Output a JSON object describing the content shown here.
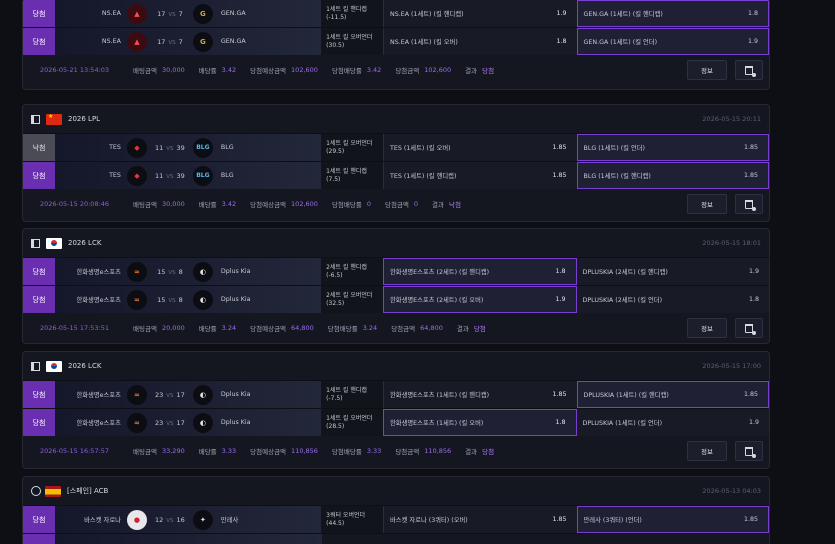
{
  "labels": {
    "bet_amount": "배팅금액",
    "odds": "배당률",
    "expected_win": "당첨예상금액",
    "win_odds": "당첨배당률",
    "win_amount": "당첨금액",
    "result": "결과",
    "info_button": "정보",
    "vs": "VS"
  },
  "colors": {
    "win_status": "#6a2fb0",
    "void_status": "#4a4b55",
    "accent": "#9c6df0",
    "selected_border": "#7a3ed0"
  },
  "cards": [
    {
      "rows": [
        {
          "status": "당첨",
          "team1": "NS.EA",
          "score1": "17",
          "score2": "7",
          "team2": "GEN.GA",
          "market": "1세트 킬 핸디캡 (-11.5)",
          "pick_home": "NS.EA (1세트) (킬 핸디캡)",
          "odd_home": "1.9",
          "pick_away": "GEN.GA (1세트) (킬 핸디캡)",
          "odd_away": "1.8"
        },
        {
          "status": "당첨",
          "team1": "NS.EA",
          "score1": "17",
          "score2": "7",
          "team2": "GEN.GA",
          "market": "1세트 킬 오버언더 (30.5)",
          "pick_home": "NS.EA (1세트) (킬 오버)",
          "odd_home": "1.8",
          "pick_away": "GEN.GA (1세트) (킬 언더)",
          "odd_away": "1.9"
        }
      ],
      "footer": {
        "date": "2026-05-21 13:54:03",
        "bet_amount": "30,000",
        "odds": "3.42",
        "expected_win": "102,600",
        "win_odds": "3.42",
        "win_amount": "102,600",
        "result": "당첨"
      }
    },
    {
      "league": "2026 LPL",
      "date": "2026-05-15 20:11",
      "rows": [
        {
          "status": "낙첨",
          "team1": "TES",
          "score1": "11",
          "score2": "39",
          "team2": "BLG",
          "market": "1세트 킬 오버언더 (29.5)",
          "pick_home": "TES (1세트) (킬 오버)",
          "odd_home": "1.85",
          "pick_away": "BLG (1세트) (킬 언더)",
          "odd_away": "1.85"
        },
        {
          "status": "당첨",
          "team1": "TES",
          "score1": "11",
          "score2": "39",
          "team2": "BLG",
          "market": "1세트 킬 핸디캡 (7.5)",
          "pick_home": "TES (1세트) (킬 핸디캡)",
          "odd_home": "1.85",
          "pick_away": "BLG (1세트) (킬 핸디캡)",
          "odd_away": "1.85"
        }
      ],
      "footer": {
        "date": "2026-05-15 20:08:46",
        "bet_amount": "30,000",
        "odds": "3.42",
        "expected_win": "102,600",
        "win_odds": "0",
        "win_amount": "0",
        "result": "낙첨"
      }
    },
    {
      "league": "2026 LCK",
      "date": "2026-05-15 18:01",
      "rows": [
        {
          "status": "당첨",
          "team1": "한화생명e스포츠",
          "score1": "15",
          "score2": "8",
          "team2": "Dplus Kia",
          "market": "2세트 킬 핸디캡 (-6.5)",
          "pick_home": "한화생명E스포츠 (2세트) (킬 핸디캡)",
          "odd_home": "1.8",
          "pick_away": "DPLUSKIA (2세트) (킬 핸디캡)",
          "odd_away": "1.9"
        },
        {
          "status": "당첨",
          "team1": "한화생명e스포츠",
          "score1": "15",
          "score2": "8",
          "team2": "Dplus Kia",
          "market": "2세트 킬 오버언더 (32.5)",
          "pick_home": "한화생명E스포츠 (2세트) (킬 오버)",
          "odd_home": "1.9",
          "pick_away": "DPLUSKIA (2세트) (킬 언더)",
          "odd_away": "1.8"
        }
      ],
      "footer": {
        "date": "2026-05-15 17:53:51",
        "bet_amount": "20,000",
        "odds": "3.24",
        "expected_win": "64,800",
        "win_odds": "3.24",
        "win_amount": "64,800",
        "result": "당첨"
      }
    },
    {
      "league": "2026 LCK",
      "date": "2026-05-15 17:00",
      "rows": [
        {
          "status": "당첨",
          "team1": "한화생명e스포츠",
          "score1": "23",
          "score2": "17",
          "team2": "Dplus Kia",
          "market": "1세트 킬 핸디캡 (-7.5)",
          "pick_home": "한화생명E스포츠 (1세트) (킬 핸디캡)",
          "odd_home": "1.85",
          "pick_away": "DPLUSKIA (1세트) (킬 핸디캡)",
          "odd_away": "1.85"
        },
        {
          "status": "당첨",
          "team1": "한화생명e스포츠",
          "score1": "23",
          "score2": "17",
          "team2": "Dplus Kia",
          "market": "1세트 킬 오버언더 (28.5)",
          "pick_home": "한화생명E스포츠 (1세트) (킬 오버)",
          "odd_home": "1.8",
          "pick_away": "DPLUSKIA (1세트) (킬 언더)",
          "odd_away": "1.9"
        }
      ],
      "footer": {
        "date": "2026-05-15 16:57:57",
        "bet_amount": "33,290",
        "odds": "3.33",
        "expected_win": "110,856",
        "win_odds": "3.33",
        "win_amount": "110,856",
        "result": "당첨"
      }
    },
    {
      "league": "[스페인] ACB",
      "date": "2026-05-13 04:03",
      "rows": [
        {
          "status": "당첨",
          "team1": "바스켓 자로나",
          "score1": "12",
          "score2": "16",
          "team2": "만레사",
          "market": "3쿼터 오버언더 (44.5)",
          "pick_home": "바스켓 자로나 (3쿼터) (오버)",
          "odd_home": "1.85",
          "pick_away": "만레사 (3쿼터) (언더)",
          "odd_away": "1.85"
        }
      ]
    }
  ]
}
